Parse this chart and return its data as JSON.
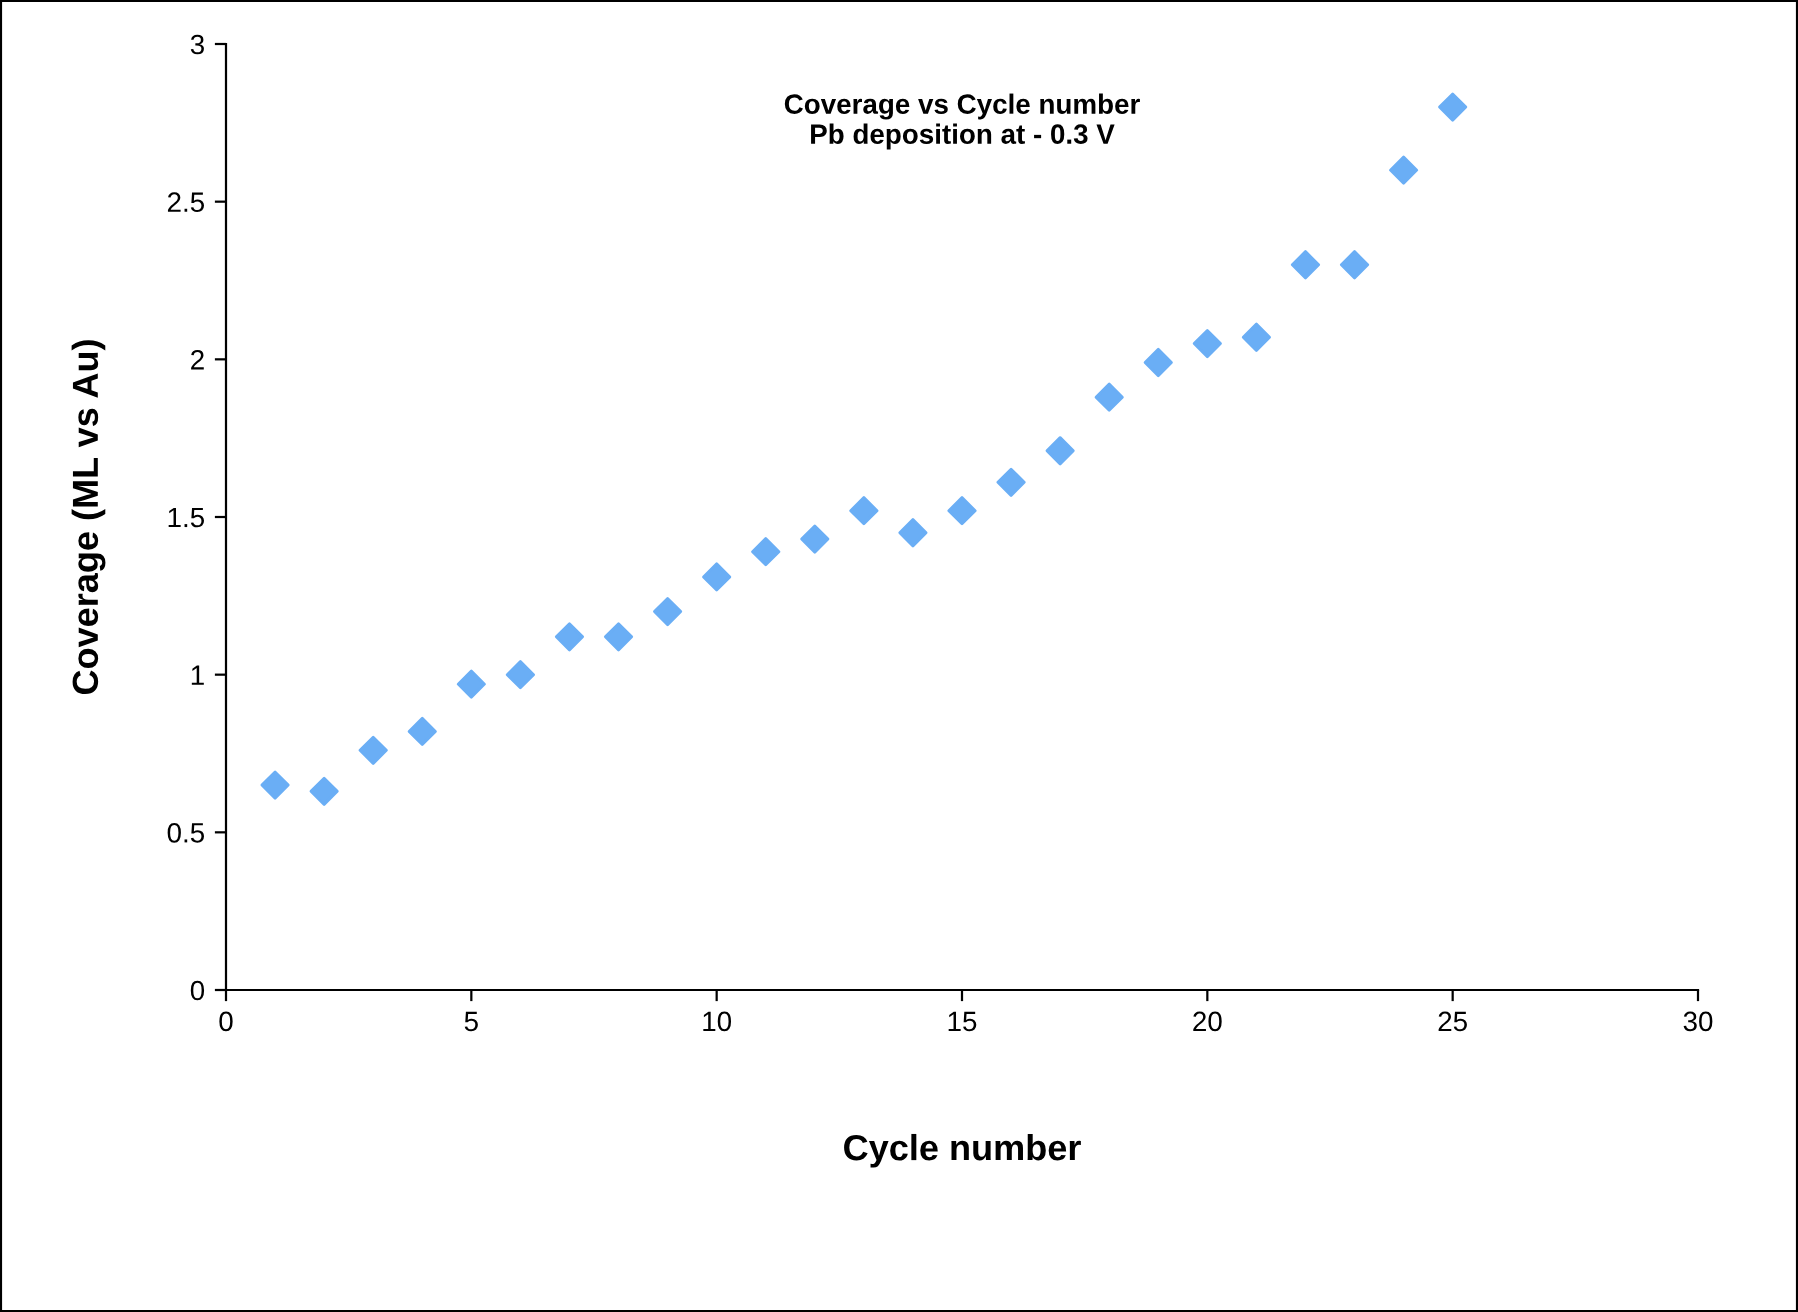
{
  "chart_data": {
    "type": "scatter",
    "title": "Coverage vs Cycle number\nPb deposition at - 0.3 V",
    "xlabel": "Cycle number",
    "ylabel": "Coverage (ML vs Au)",
    "x": [
      1,
      2,
      3,
      4,
      5,
      6,
      7,
      8,
      9,
      10,
      11,
      12,
      13,
      14,
      15,
      16,
      17,
      18,
      19,
      20,
      21,
      22,
      23,
      24,
      25
    ],
    "series": [
      {
        "color": "#6aaef5",
        "values": [
          0.65,
          0.63,
          0.76,
          0.82,
          0.97,
          1.0,
          1.12,
          1.12,
          1.2,
          1.31,
          1.39,
          1.43,
          1.52,
          1.45,
          1.52,
          1.61,
          1.71,
          1.88,
          1.99,
          2.05,
          2.07,
          2.3,
          2.3,
          2.6,
          2.8
        ]
      }
    ],
    "xlim": [
      0,
      30
    ],
    "ylim": [
      0,
      3
    ],
    "xticks": [
      0,
      5,
      10,
      15,
      20,
      25,
      30
    ],
    "yticks": [
      0,
      0.5,
      1,
      1.5,
      2,
      2.5,
      3
    ],
    "grid": false,
    "legend": false,
    "marker": "diamond"
  }
}
